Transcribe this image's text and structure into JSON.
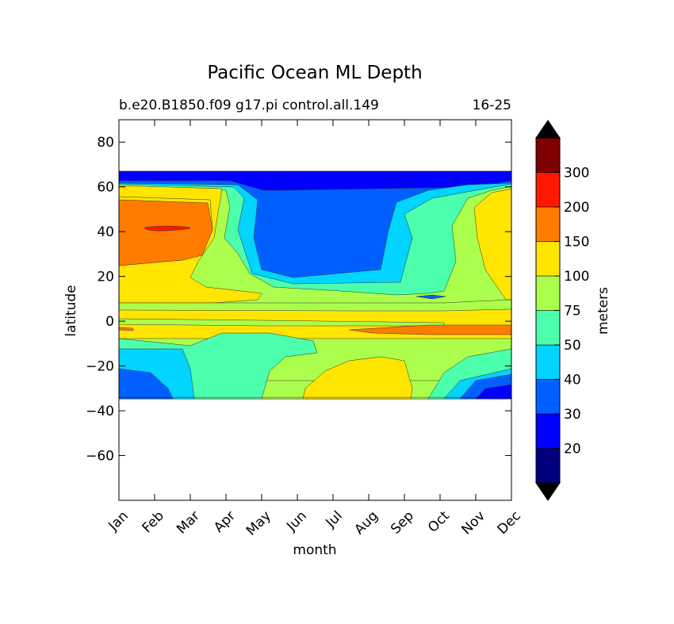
{
  "chart_data": {
    "type": "heatmap",
    "subtype": "filled-contour",
    "title": "Pacific Ocean ML Depth",
    "subtitle_left": "b.e20.B1850.f09 g17.pi control.all.149",
    "subtitle_right": "16-25",
    "xlabel": "month",
    "ylabel": "latitude",
    "x_categories": [
      "Jan",
      "Feb",
      "Mar",
      "Apr",
      "May",
      "Jun",
      "Jul",
      "Aug",
      "Sep",
      "Oct",
      "Nov",
      "Dec"
    ],
    "ylim": [
      -80,
      90
    ],
    "y_ticks": [
      80,
      60,
      40,
      20,
      0,
      -20,
      -40,
      -60
    ],
    "y_tick_labels": [
      "80",
      "60",
      "40",
      "20",
      "0",
      "−20",
      "−40",
      "−60"
    ],
    "data_extent_lat": [
      -34,
      67
    ],
    "colorbar": {
      "label": "meters",
      "extend": "both",
      "tick_labels": [
        "20",
        "30",
        "40",
        "50",
        "75",
        "100",
        "150",
        "200",
        "300"
      ],
      "bounds": [
        10,
        20,
        30,
        40,
        50,
        75,
        100,
        150,
        200,
        300,
        400
      ],
      "colors": [
        "#00007f",
        "#0000ff",
        "#0060ff",
        "#00d4ff",
        "#4cffad",
        "#abff4c",
        "#ffe500",
        "#ff7c00",
        "#ff1700",
        "#7f0000"
      ],
      "under_color": "#000000",
      "over_color": "#000000"
    },
    "approx_field_by_month": [
      {
        "month": "Jan",
        "values_m": [
          {
            "lat_range": [
              60,
              67
            ],
            "level_m": 20
          },
          {
            "lat_range": [
              45,
              55
            ],
            "level_m": 100
          },
          {
            "lat_range": [
              6,
              20
            ],
            "level_m": 75
          },
          {
            "lat_range": [
              -20,
              -10
            ],
            "level_m": 40
          }
        ]
      },
      {
        "month": "Feb",
        "values_m": [
          {
            "lat_range": [
              40,
              44
            ],
            "level_m": 150
          },
          {
            "lat_range": [
              25,
              55
            ],
            "level_m": 100
          },
          {
            "lat_range": [
              -34,
              -25
            ],
            "level_m": 30
          }
        ]
      },
      {
        "month": "Jun",
        "values_m": [
          {
            "lat_range": [
              62,
              67
            ],
            "level_m": 10
          },
          {
            "lat_range": [
              28,
              58
            ],
            "level_m": 20
          },
          {
            "lat_range": [
              20,
              28
            ],
            "level_m": 30
          }
        ]
      },
      {
        "month": "Aug",
        "values_m": [
          {
            "lat_range": [
              -34,
              -15
            ],
            "level_m": 100
          },
          {
            "lat_range": [
              30,
              60
            ],
            "level_m": 20
          }
        ]
      },
      {
        "month": "Oct",
        "values_m": [
          {
            "lat_range": [
              -5,
              -2
            ],
            "level_m": 100
          },
          {
            "lat_range": [
              -34,
              -28
            ],
            "level_m": 50
          }
        ]
      },
      {
        "month": "Dec",
        "values_m": [
          {
            "lat_range": [
              25,
              55
            ],
            "level_m": 75
          },
          {
            "lat_range": [
              -34,
              -25
            ],
            "level_m": 20
          }
        ]
      }
    ]
  }
}
